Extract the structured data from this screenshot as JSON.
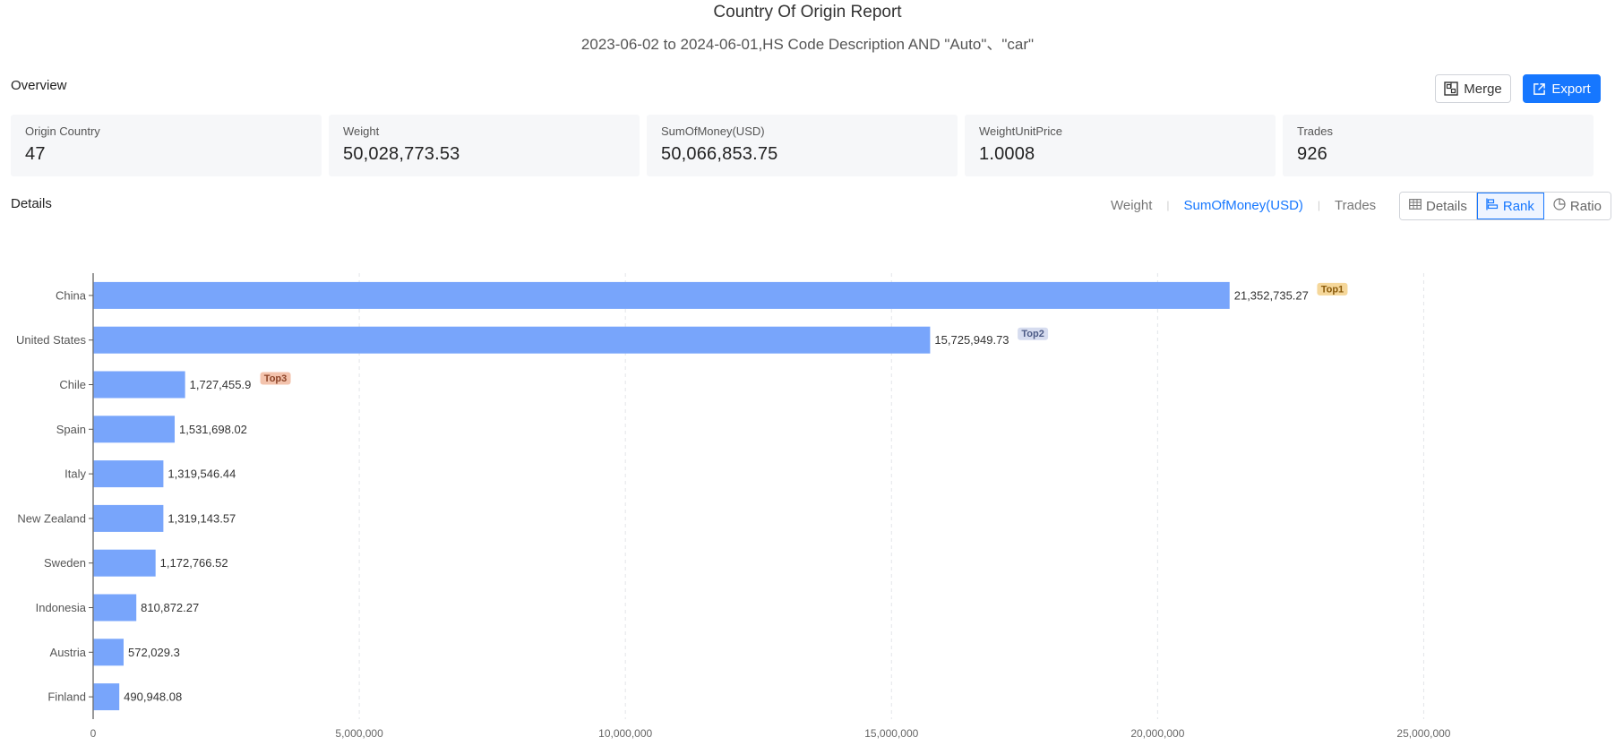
{
  "header": {
    "title": "Country Of Origin Report",
    "subtitle": "2023-06-02 to 2024-06-01,HS Code Description AND \"Auto\"、\"car\""
  },
  "overview": {
    "label": "Overview",
    "merge_label": "Merge",
    "export_label": "Export",
    "cards": [
      {
        "label": "Origin Country",
        "value": "47"
      },
      {
        "label": "Weight",
        "value": "50,028,773.53"
      },
      {
        "label": "SumOfMoney(USD)",
        "value": "50,066,853.75"
      },
      {
        "label": "WeightUnitPrice",
        "value": "1.0008"
      },
      {
        "label": "Trades",
        "value": "926"
      }
    ]
  },
  "details": {
    "label": "Details",
    "metric_tabs": [
      {
        "label": "Weight",
        "active": false
      },
      {
        "label": "SumOfMoney(USD)",
        "active": true
      },
      {
        "label": "Trades",
        "active": false
      }
    ],
    "views": [
      {
        "label": "Details",
        "icon": "table-icon",
        "active": false
      },
      {
        "label": "Rank",
        "icon": "bar-rank-icon",
        "active": true
      },
      {
        "label": "Ratio",
        "icon": "pie-icon",
        "active": false
      }
    ]
  },
  "colors": {
    "accent": "#1677ff",
    "bar": "#78a5fb",
    "top1_bg": "#f5d79a",
    "top1_text": "#8a5a0a",
    "top2_bg": "#d6dcef",
    "top2_text": "#4c5a85",
    "top3_bg": "#f3c3ad",
    "top3_text": "#8c4327"
  },
  "chart_data": {
    "type": "bar",
    "orientation": "horizontal",
    "categories": [
      "China",
      "United States",
      "Chile",
      "Spain",
      "Italy",
      "New Zealand",
      "Sweden",
      "Indonesia",
      "Austria",
      "Finland"
    ],
    "values": [
      21352735.27,
      15725949.73,
      1727455.9,
      1531698.02,
      1319546.44,
      1319143.57,
      1172766.52,
      810872.27,
      572029.3,
      490948.08
    ],
    "value_labels": [
      "21,352,735.27",
      "15,725,949.73",
      "1,727,455.9",
      "1,531,698.02",
      "1,319,546.44",
      "1,319,143.57",
      "1,172,766.52",
      "810,872.27",
      "572,029.3",
      "490,948.08"
    ],
    "badges": [
      "Top1",
      "Top2",
      "Top3",
      "",
      "",
      "",
      "",
      "",
      "",
      ""
    ],
    "xlim": [
      0,
      27500000
    ],
    "xticks": [
      0,
      5000000,
      10000000,
      15000000,
      20000000,
      25000000
    ],
    "xtick_labels": [
      "0",
      "5,000,000",
      "10,000,000",
      "15,000,000",
      "20,000,000",
      "25,000,000"
    ],
    "grid": true,
    "title": "",
    "xlabel": "",
    "ylabel": ""
  }
}
